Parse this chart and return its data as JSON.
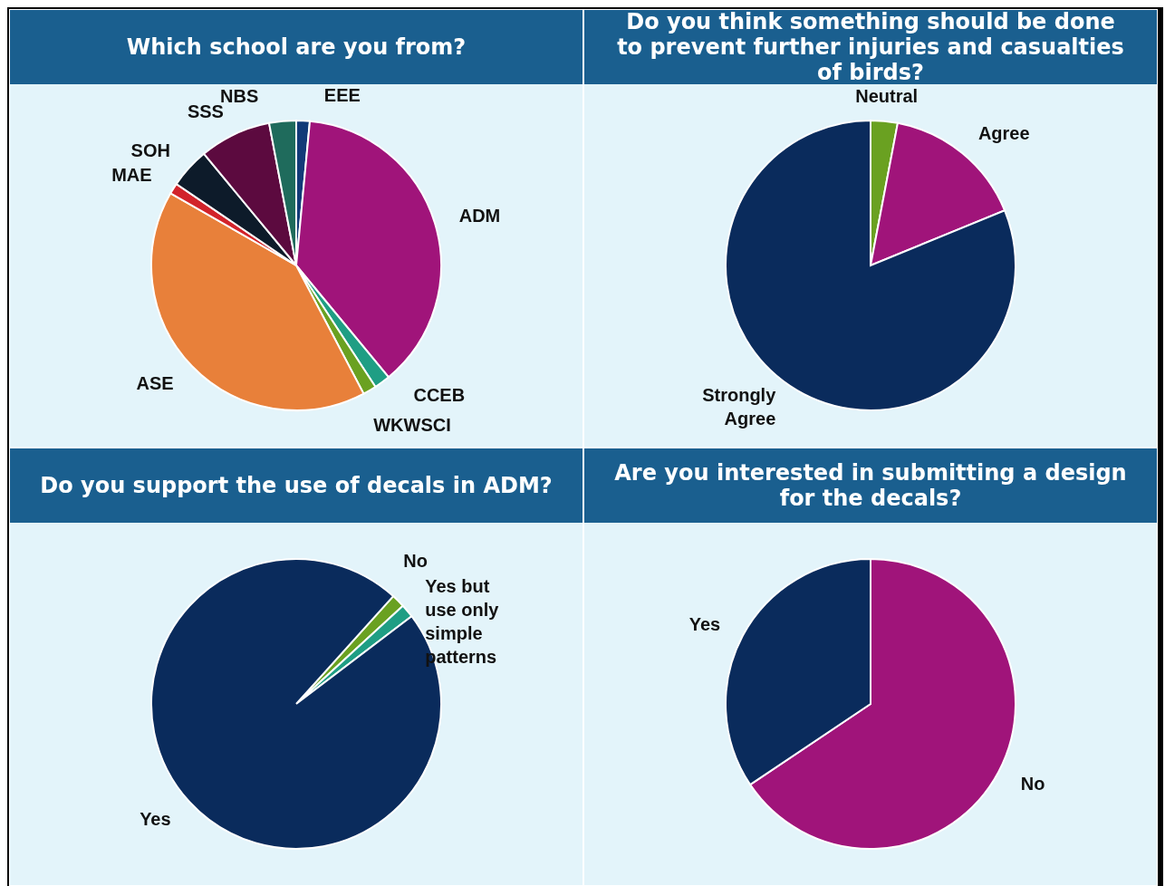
{
  "chart_data": [
    {
      "type": "pie",
      "title": "Which school are you from?",
      "categories": [
        "EEE",
        "ADM",
        "CCEB",
        "WKWSCI",
        "ASE",
        "MAE",
        "SOH",
        "SSS",
        "NBS"
      ],
      "values": [
        1.5,
        37.5,
        1.8,
        1.5,
        41,
        1.2,
        4.5,
        8,
        3
      ],
      "colors": [
        "#123a78",
        "#a0147a",
        "#1f9e84",
        "#6aa121",
        "#e8803a",
        "#d2232a",
        "#0d1b2a",
        "#5c0a3f",
        "#1f6b5c"
      ],
      "legend": false
    },
    {
      "type": "pie",
      "title": "Do you think something should be done to prevent further injuries and casualties of birds?",
      "categories": [
        "Neutral",
        "Agree",
        "Strongly Agree"
      ],
      "values": [
        3,
        15.8,
        81.2
      ],
      "colors": [
        "#6aa121",
        "#a0147a",
        "#0a2b5c"
      ],
      "legend": false
    },
    {
      "type": "pie",
      "title": "Do you support the use of decals in ADM?",
      "categories": [
        "No",
        "Yes but use only simple patterns",
        "Yes"
      ],
      "values": [
        1.5,
        1.5,
        97
      ],
      "colors": [
        "#6aa121",
        "#1f9e84",
        "#0a2b5c"
      ],
      "legend": false
    },
    {
      "type": "pie",
      "title": "Are you interested in submitting a design for the decals?",
      "categories": [
        "No",
        "Yes"
      ],
      "values": [
        65.6,
        34.4
      ],
      "colors": [
        "#a0147a",
        "#0a2b5c"
      ],
      "legend": false
    }
  ]
}
